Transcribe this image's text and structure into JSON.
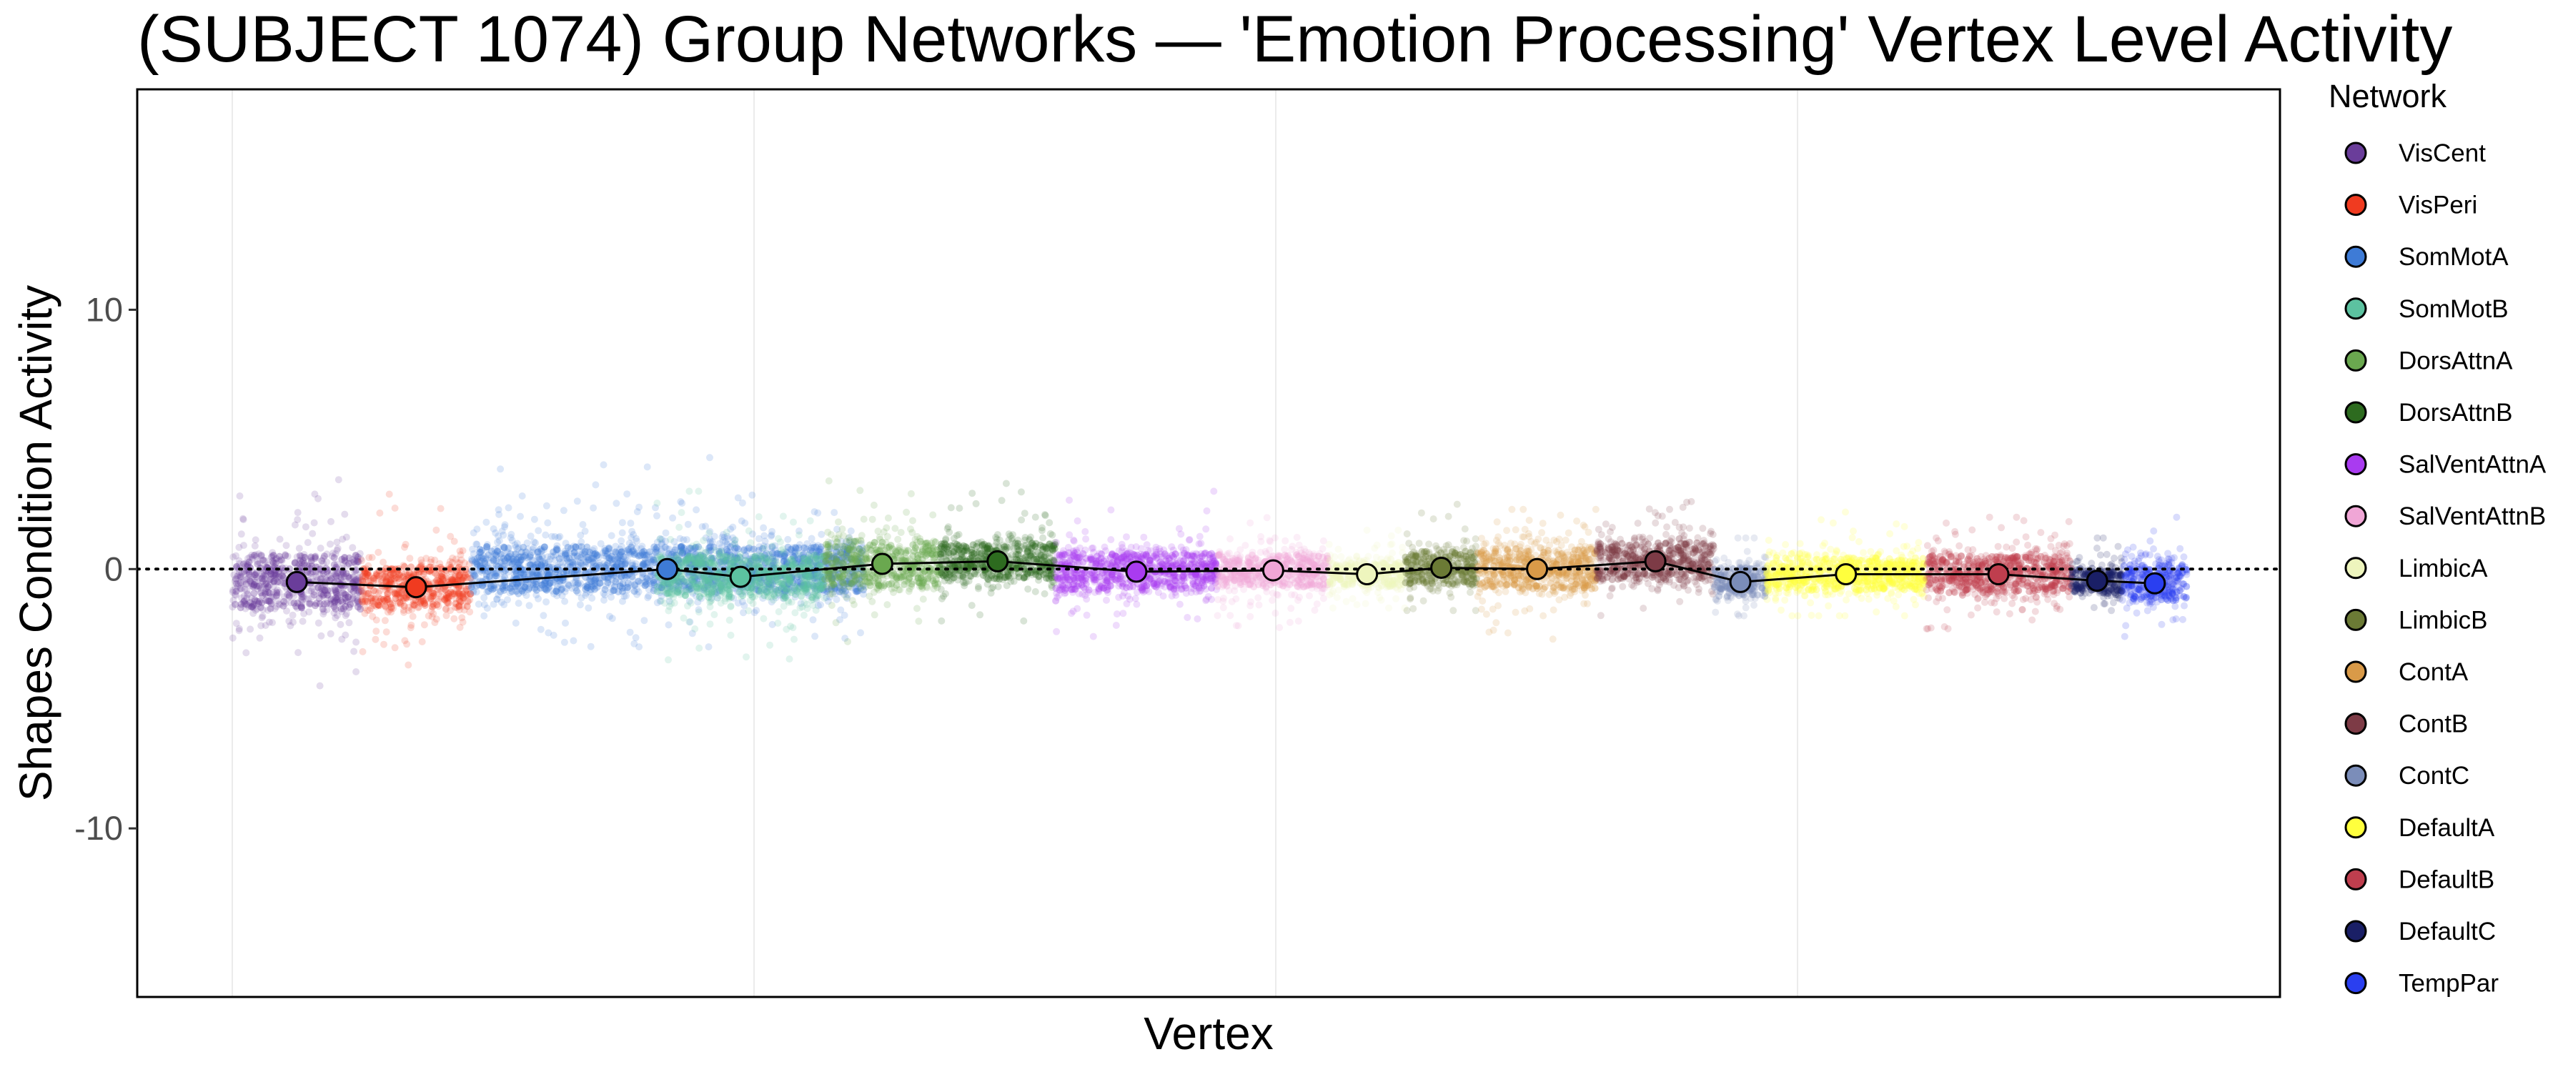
{
  "chart_data": {
    "type": "scatter",
    "title": "(SUBJECT 1074) Group Networks — 'Emotion Processing' Vertex Level Activity",
    "xlabel": "Vertex",
    "ylabel": "Shapes Condition Activity",
    "ylim": [
      -16.5,
      18.5
    ],
    "yticks": [
      -10,
      0,
      10
    ],
    "ytick_labels": [
      "-10",
      "0",
      "10"
    ],
    "reference_line": {
      "y": 0,
      "style": "dotted"
    },
    "grid": "vertical major and minor lines only",
    "legend": {
      "title": "Network",
      "placement": "right"
    },
    "series": [
      {
        "name": "VisCent",
        "color": "#6A3D9A",
        "start": 0,
        "end": 0.066,
        "mean": -0.5,
        "spread": 1.3,
        "lo": -4.5,
        "hi": 3.5
      },
      {
        "name": "VisPeri",
        "color": "#F03B20",
        "start": 0.066,
        "end": 0.122,
        "mean": -0.7,
        "spread": 1.0,
        "lo": -3.8,
        "hi": 4.0
      },
      {
        "name": "SomMotA",
        "color": "#3E7BD6",
        "start": 0.122,
        "end": 0.323,
        "mean": 0.0,
        "spread": 1.1,
        "lo": -3.0,
        "hi": 4.3
      },
      {
        "name": "SomMotB",
        "color": "#5CC2A0",
        "start": 0.217,
        "end": 0.303,
        "mean": -0.3,
        "spread": 1.0,
        "lo": -3.5,
        "hi": 3.0
      },
      {
        "name": "DorsAttnA",
        "color": "#6AA84F",
        "start": 0.303,
        "end": 0.362,
        "mean": 0.2,
        "spread": 1.1,
        "lo": -2.8,
        "hi": 3.4
      },
      {
        "name": "DorsAttnB",
        "color": "#2D6B1F",
        "start": 0.362,
        "end": 0.421,
        "mean": 0.3,
        "spread": 0.9,
        "lo": -2.0,
        "hi": 3.3
      },
      {
        "name": "SalVentAttnA",
        "color": "#A93BF0",
        "start": 0.421,
        "end": 0.504,
        "mean": -0.1,
        "spread": 0.9,
        "lo": -2.6,
        "hi": 3.0
      },
      {
        "name": "SalVentAttnB",
        "color": "#F0A6D6",
        "start": 0.504,
        "end": 0.561,
        "mean": -0.05,
        "spread": 0.8,
        "lo": -2.8,
        "hi": 2.2
      },
      {
        "name": "LimbicA",
        "color": "#EEF5BD",
        "start": 0.561,
        "end": 0.6,
        "mean": -0.2,
        "spread": 0.6,
        "lo": -1.5,
        "hi": 1.5
      },
      {
        "name": "LimbicB",
        "color": "#6B7A35",
        "start": 0.6,
        "end": 0.637,
        "mean": 0.05,
        "spread": 0.8,
        "lo": -1.6,
        "hi": 2.5
      },
      {
        "name": "ContA",
        "color": "#D99A48",
        "start": 0.637,
        "end": 0.698,
        "mean": 0.0,
        "spread": 1.0,
        "lo": -2.7,
        "hi": 2.3
      },
      {
        "name": "ContB",
        "color": "#7D3B46",
        "start": 0.698,
        "end": 0.758,
        "mean": 0.3,
        "spread": 0.9,
        "lo": -2.0,
        "hi": 2.6
      },
      {
        "name": "ContC",
        "color": "#7B8DB9",
        "start": 0.758,
        "end": 0.785,
        "mean": -0.5,
        "spread": 0.7,
        "lo": -1.8,
        "hi": 1.2
      },
      {
        "name": "DefaultA",
        "color": "#FFFF3D",
        "start": 0.785,
        "end": 0.866,
        "mean": -0.2,
        "spread": 0.8,
        "lo": -1.8,
        "hi": 2.2
      },
      {
        "name": "DefaultB",
        "color": "#BF3E4E",
        "start": 0.866,
        "end": 0.941,
        "mean": -0.2,
        "spread": 0.9,
        "lo": -2.3,
        "hi": 2.0
      },
      {
        "name": "DefaultC",
        "color": "#1A1F66",
        "start": 0.941,
        "end": 0.967,
        "mean": -0.45,
        "spread": 0.6,
        "lo": -1.6,
        "hi": 1.2
      },
      {
        "name": "TempPar",
        "color": "#2A3FF0",
        "start": 0.967,
        "end": 1.0,
        "mean": -0.55,
        "spread": 0.9,
        "lo": -2.6,
        "hi": 2.0
      }
    ]
  }
}
